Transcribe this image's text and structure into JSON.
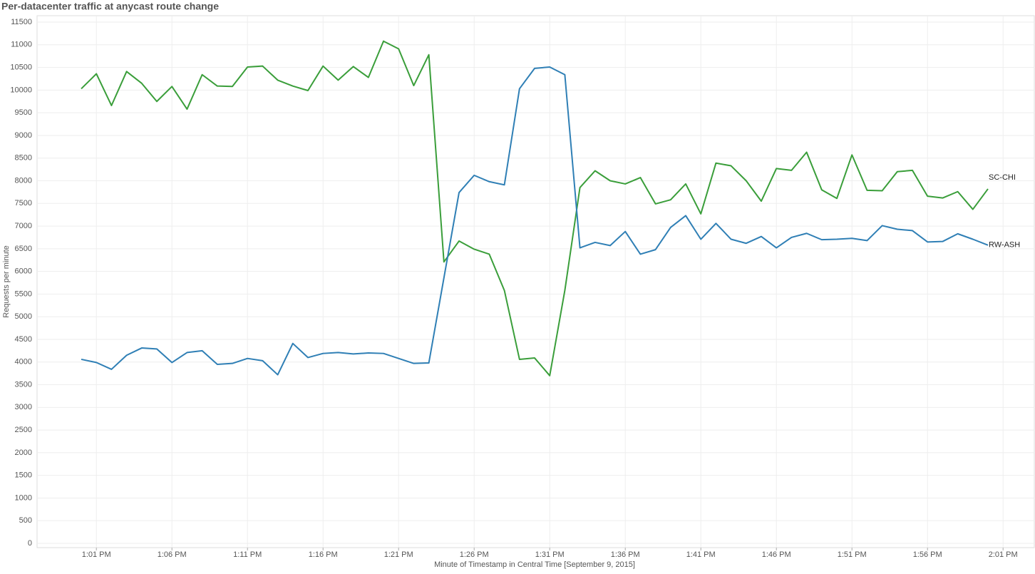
{
  "chart_data": {
    "type": "line",
    "title": "Per-datacenter traffic at anycast route change",
    "x_label": "Minute of Timestamp in Central Time [September 9, 2015]",
    "y_label": "Requests per minute",
    "x": [
      "1:00 PM",
      "1:01 PM",
      "1:02 PM",
      "1:03 PM",
      "1:04 PM",
      "1:05 PM",
      "1:06 PM",
      "1:07 PM",
      "1:08 PM",
      "1:09 PM",
      "1:10 PM",
      "1:11 PM",
      "1:12 PM",
      "1:13 PM",
      "1:14 PM",
      "1:15 PM",
      "1:16 PM",
      "1:17 PM",
      "1:18 PM",
      "1:19 PM",
      "1:20 PM",
      "1:21 PM",
      "1:22 PM",
      "1:23 PM",
      "1:24 PM",
      "1:25 PM",
      "1:26 PM",
      "1:27 PM",
      "1:28 PM",
      "1:29 PM",
      "1:30 PM",
      "1:31 PM",
      "1:32 PM",
      "1:33 PM",
      "1:34 PM",
      "1:35 PM",
      "1:36 PM",
      "1:37 PM",
      "1:38 PM",
      "1:39 PM",
      "1:40 PM",
      "1:41 PM",
      "1:42 PM",
      "1:43 PM",
      "1:44 PM",
      "1:45 PM",
      "1:46 PM",
      "1:47 PM",
      "1:48 PM",
      "1:49 PM",
      "1:50 PM",
      "1:51 PM",
      "1:52 PM",
      "1:53 PM",
      "1:54 PM",
      "1:55 PM",
      "1:56 PM",
      "1:57 PM",
      "1:58 PM",
      "1:59 PM",
      "2:00 PM"
    ],
    "xticks": [
      "1:01 PM",
      "1:06 PM",
      "1:11 PM",
      "1:16 PM",
      "1:21 PM",
      "1:26 PM",
      "1:31 PM",
      "1:36 PM",
      "1:41 PM",
      "1:46 PM",
      "1:51 PM",
      "1:56 PM",
      "2:01 PM"
    ],
    "ylim": [
      -94,
      11642
    ],
    "yticks": [
      0,
      500,
      1000,
      1500,
      2000,
      2500,
      3000,
      3500,
      4000,
      4500,
      5000,
      5500,
      6000,
      6500,
      7000,
      7500,
      8000,
      8500,
      9000,
      9500,
      10000,
      10500,
      11000,
      11500
    ],
    "grid": true,
    "series": [
      {
        "name": "SC-CHI",
        "color": "#3a9e3a",
        "values": [
          10030,
          10360,
          9660,
          10410,
          10150,
          9750,
          10080,
          9580,
          10340,
          10090,
          10080,
          10510,
          10530,
          10220,
          10090,
          9990,
          10530,
          10220,
          10520,
          10280,
          11080,
          10910,
          10100,
          10780,
          6210,
          6670,
          6490,
          6380,
          5580,
          4060,
          4090,
          3700,
          5580,
          7850,
          8220,
          8000,
          7930,
          8070,
          7490,
          7580,
          7930,
          7270,
          8390,
          8330,
          8000,
          7550,
          8270,
          8230,
          8630,
          7800,
          7610,
          8570,
          7790,
          7780,
          8200,
          8230,
          7660,
          7620,
          7760,
          7370,
          7820
        ]
      },
      {
        "name": "RW-ASH",
        "color": "#2f7fb5",
        "values": [
          4060,
          3990,
          3840,
          4150,
          4310,
          4290,
          3990,
          4210,
          4250,
          3950,
          3970,
          4080,
          4030,
          3720,
          4410,
          4100,
          4190,
          4210,
          4180,
          4200,
          4190,
          4080,
          3970,
          3980,
          5860,
          7740,
          8120,
          7980,
          7910,
          10030,
          10480,
          10510,
          10340,
          6520,
          6640,
          6570,
          6880,
          6380,
          6480,
          6970,
          7230,
          6710,
          7060,
          6710,
          6620,
          6770,
          6520,
          6750,
          6840,
          6700,
          6710,
          6730,
          6680,
          7010,
          6930,
          6900,
          6650,
          6660,
          6830,
          6710,
          6580
        ]
      }
    ]
  }
}
